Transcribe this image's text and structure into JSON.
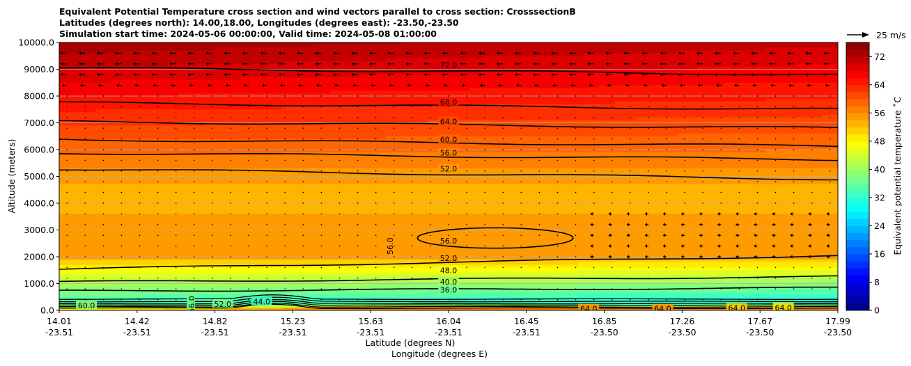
{
  "chart_data": {
    "type": "contour",
    "title_lines": [
      "Equivalent Potential Temperature cross section and wind vectors parallel to cross section: CrosssectionB",
      "Latitudes (degrees north): 14.00,18.00, Longitudes (degrees east): -23.50,-23.50",
      "Simulation start time: 2024-05-06 00:00:00, Valid time: 2024-05-08 01:00:00"
    ],
    "ylabel": "Altitude (meters)",
    "xlabel_lat": "Latitude (degrees N)",
    "xlabel_lon": "Longitude (degrees E)",
    "ylim": [
      0,
      10000
    ],
    "y_ticks": [
      "0.0",
      "1000.0",
      "2000.0",
      "3000.0",
      "4000.0",
      "5000.0",
      "6000.0",
      "7000.0",
      "8000.0",
      "9000.0",
      "10000.0"
    ],
    "x_lat_ticks": [
      "14.01",
      "14.42",
      "14.82",
      "15.23",
      "15.63",
      "16.04",
      "16.45",
      "16.85",
      "17.26",
      "17.67",
      "17.99"
    ],
    "x_lon_ticks": [
      "-23.51",
      "-23.51",
      "-23.51",
      "-23.51",
      "-23.51",
      "-23.51",
      "-23.51",
      "-23.50",
      "-23.50",
      "-23.50",
      "-23.50"
    ],
    "colorbar": {
      "label": "Equivalent potential temperature ˚C",
      "min": 0,
      "max": 76,
      "step": 2,
      "ticks": [
        "0",
        "8",
        "16",
        "24",
        "32",
        "40",
        "48",
        "56",
        "64",
        "72"
      ]
    },
    "quiver_key": "25 m/s",
    "contour_levels": [
      {
        "level": 72,
        "label": "72.0",
        "altitude_m": 9050
      },
      {
        "level": 68,
        "label": "68.0",
        "altitude_m": 7750
      },
      {
        "level": 64,
        "label": "64.0",
        "altitude_m": 7050
      },
      {
        "level": 60,
        "label": "60.0",
        "altitude_m": 6380
      },
      {
        "level": 56,
        "label": "56.0",
        "altitude_m": 5880
      },
      {
        "level": 52,
        "label": "52.0",
        "altitude_m": 5280
      },
      {
        "level": 48,
        "label": "48.0",
        "altitude_m": 1540
      },
      {
        "level": 40,
        "label": "40.0",
        "altitude_m": 1060
      },
      {
        "level": 36,
        "label": "36.0",
        "altitude_m": 720
      }
    ],
    "inline_labels": [
      {
        "text": "72.0",
        "lat_index": 5.0,
        "altitude_m": 9150
      },
      {
        "text": "68.0",
        "lat_index": 5.0,
        "altitude_m": 7780
      },
      {
        "text": "64.0",
        "lat_index": 5.0,
        "altitude_m": 7050
      },
      {
        "text": "60.0",
        "lat_index": 5.0,
        "altitude_m": 6380
      },
      {
        "text": "56.0",
        "lat_index": 5.0,
        "altitude_m": 5880
      },
      {
        "text": "52.0",
        "lat_index": 5.0,
        "altitude_m": 5280
      },
      {
        "text": "56.0",
        "lat_index": 5.0,
        "altitude_m": 2600
      },
      {
        "text": "56.0",
        "lat_index": 4.25,
        "altitude_m": 2400
      },
      {
        "text": "52.0",
        "lat_index": 5.0,
        "altitude_m": 1950
      },
      {
        "text": "48.0",
        "lat_index": 5.0,
        "altitude_m": 1500
      },
      {
        "text": "40.0",
        "lat_index": 5.0,
        "altitude_m": 1060
      },
      {
        "text": "36.0",
        "lat_index": 5.0,
        "altitude_m": 760
      },
      {
        "text": "60.0",
        "lat_index": 0.35,
        "altitude_m": 180
      },
      {
        "text": "56.0",
        "lat_index": 1.7,
        "altitude_m": 220
      },
      {
        "text": "52.0",
        "lat_index": 2.1,
        "altitude_m": 230
      },
      {
        "text": "44.0",
        "lat_index": 2.6,
        "altitude_m": 320
      },
      {
        "text": "64.0",
        "lat_index": 6.8,
        "altitude_m": 60
      },
      {
        "text": "64.0",
        "lat_index": 7.75,
        "altitude_m": 60
      },
      {
        "text": "64.0",
        "lat_index": 8.7,
        "altitude_m": 90
      },
      {
        "text": "64.0",
        "lat_index": 9.3,
        "altitude_m": 110
      }
    ]
  }
}
